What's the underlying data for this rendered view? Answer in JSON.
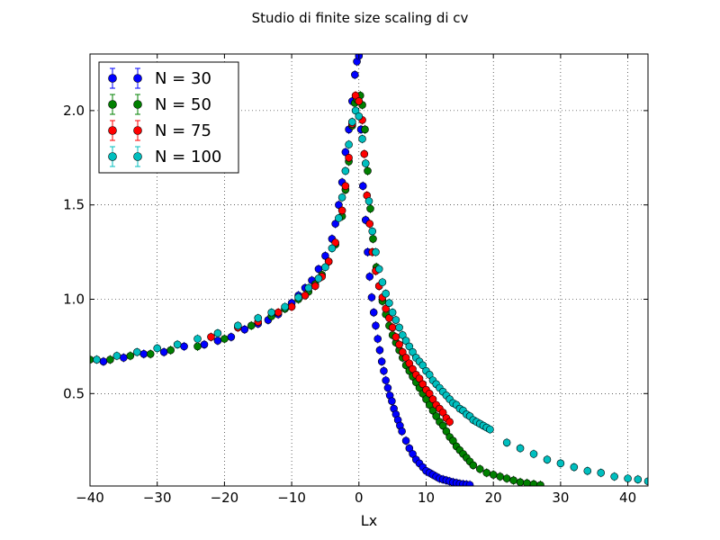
{
  "chart_data": {
    "type": "scatter",
    "title": "Studio di finite size scaling di cv",
    "xlabel": "Lx",
    "ylabel": "",
    "xlim": [
      -40,
      43
    ],
    "ylim": [
      0.01,
      2.3
    ],
    "xticks": [
      -40,
      -30,
      -20,
      -10,
      0,
      10,
      20,
      30,
      40
    ],
    "xtick_labels": [
      "−40",
      "−30",
      "−20",
      "−10",
      "0",
      "10",
      "20",
      "30",
      "40"
    ],
    "yticks": [
      0.5,
      1.0,
      1.5,
      2.0
    ],
    "ytick_labels": [
      "0.5",
      "1.0",
      "1.5",
      "2.0"
    ],
    "grid": true,
    "legend_position": "top-left",
    "error_bars": true,
    "series": [
      {
        "name": "N = 30",
        "color": "#0000ff",
        "x": [
          -38.0,
          -35.0,
          -32.0,
          -29.0,
          -26.0,
          -23.0,
          -21.0,
          -19.0,
          -17.0,
          -15.0,
          -13.5,
          -12.0,
          -11.0,
          -10.0,
          -9.0,
          -8.0,
          -7.0,
          -6.0,
          -5.0,
          -4.0,
          -3.5,
          -3.0,
          -2.5,
          -2.0,
          -1.5,
          -1.0,
          -0.6,
          -0.3,
          0.0,
          0.3,
          0.6,
          1.0,
          1.3,
          1.6,
          1.9,
          2.2,
          2.5,
          2.8,
          3.1,
          3.4,
          3.7,
          4.0,
          4.3,
          4.6,
          4.9,
          5.2,
          5.5,
          5.8,
          6.1,
          6.4,
          7.0,
          7.5,
          8.0,
          8.5,
          9.0,
          9.5,
          10.0,
          10.5,
          11.0,
          11.5,
          12.0,
          12.5,
          13.0,
          13.5,
          14.0,
          14.5,
          15.0,
          15.5,
          16.0,
          16.5
        ],
        "y": [
          0.67,
          0.69,
          0.71,
          0.72,
          0.75,
          0.76,
          0.78,
          0.8,
          0.84,
          0.87,
          0.89,
          0.92,
          0.95,
          0.98,
          1.02,
          1.06,
          1.1,
          1.16,
          1.23,
          1.32,
          1.4,
          1.5,
          1.62,
          1.78,
          1.9,
          2.05,
          2.19,
          2.26,
          2.29,
          1.9,
          1.6,
          1.42,
          1.25,
          1.12,
          1.01,
          0.93,
          0.86,
          0.79,
          0.73,
          0.67,
          0.62,
          0.57,
          0.53,
          0.49,
          0.46,
          0.42,
          0.39,
          0.36,
          0.33,
          0.3,
          0.25,
          0.21,
          0.18,
          0.15,
          0.13,
          0.11,
          0.09,
          0.08,
          0.07,
          0.06,
          0.05,
          0.045,
          0.04,
          0.035,
          0.03,
          0.026,
          0.022,
          0.02,
          0.018,
          0.016
        ]
      },
      {
        "name": "N = 50",
        "color": "#008000",
        "x": [
          -40.0,
          -37.0,
          -34.0,
          -31.0,
          -28.0,
          -24.0,
          -20.0,
          -16.0,
          -13.0,
          -11.0,
          -9.0,
          -7.5,
          -6.5,
          -5.5,
          -4.5,
          -3.5,
          -2.5,
          -2.0,
          -1.5,
          -1.0,
          -0.6,
          -0.3,
          0.2,
          0.5,
          0.9,
          1.3,
          1.7,
          2.1,
          2.6,
          3.0,
          3.5,
          4.0,
          4.5,
          5.0,
          5.5,
          6.0,
          6.5,
          7.0,
          7.5,
          8.0,
          8.5,
          9.0,
          9.5,
          10.0,
          10.5,
          11.0,
          11.5,
          12.0,
          12.5,
          13.0,
          13.5,
          14.0,
          14.5,
          15.0,
          15.5,
          16.0,
          16.5,
          17.0,
          18.0,
          19.0,
          20.0,
          21.0,
          22.0,
          23.0,
          24.0,
          25.0,
          26.0,
          27.0
        ],
        "y": [
          0.68,
          0.68,
          0.7,
          0.71,
          0.73,
          0.75,
          0.79,
          0.86,
          0.91,
          0.95,
          1.0,
          1.04,
          1.08,
          1.13,
          1.2,
          1.29,
          1.44,
          1.58,
          1.73,
          1.92,
          2.04,
          2.06,
          2.08,
          2.03,
          1.9,
          1.68,
          1.48,
          1.32,
          1.17,
          1.07,
          0.99,
          0.92,
          0.86,
          0.81,
          0.77,
          0.73,
          0.69,
          0.65,
          0.62,
          0.59,
          0.56,
          0.53,
          0.5,
          0.47,
          0.44,
          0.41,
          0.38,
          0.35,
          0.33,
          0.3,
          0.27,
          0.25,
          0.22,
          0.2,
          0.18,
          0.16,
          0.14,
          0.12,
          0.1,
          0.08,
          0.07,
          0.06,
          0.05,
          0.04,
          0.03,
          0.025,
          0.02,
          0.015
        ]
      },
      {
        "name": "N = 75",
        "color": "#ff0000",
        "x": [
          -22.0,
          -18.0,
          -15.0,
          -12.0,
          -10.0,
          -8.0,
          -6.5,
          -5.5,
          -4.5,
          -3.5,
          -2.5,
          -2.0,
          -1.5,
          -1.0,
          -0.5,
          0.0,
          0.5,
          0.8,
          1.2,
          1.6,
          2.0,
          2.5,
          3.0,
          3.5,
          4.0,
          4.5,
          5.0,
          5.5,
          6.0,
          6.5,
          7.0,
          7.5,
          8.0,
          8.5,
          9.0,
          9.5,
          10.0,
          10.5,
          11.0,
          11.5,
          12.0,
          12.5,
          13.0,
          13.5
        ],
        "y": [
          0.8,
          0.85,
          0.88,
          0.93,
          0.96,
          1.02,
          1.07,
          1.12,
          1.2,
          1.3,
          1.47,
          1.6,
          1.75,
          1.93,
          2.08,
          2.05,
          1.95,
          1.77,
          1.55,
          1.4,
          1.25,
          1.15,
          1.07,
          1.01,
          0.95,
          0.9,
          0.85,
          0.8,
          0.76,
          0.72,
          0.69,
          0.66,
          0.63,
          0.6,
          0.58,
          0.55,
          0.52,
          0.5,
          0.47,
          0.44,
          0.42,
          0.4,
          0.37,
          0.35
        ]
      },
      {
        "name": "N = 100",
        "color": "#00bfbf",
        "x": [
          -39.0,
          -36.0,
          -33.0,
          -30.0,
          -27.0,
          -24.0,
          -21.0,
          -18.0,
          -15.0,
          -13.0,
          -11.0,
          -9.0,
          -7.5,
          -6.0,
          -5.0,
          -4.0,
          -3.0,
          -2.5,
          -2.0,
          -1.5,
          -1.0,
          -0.5,
          0.0,
          0.5,
          1.0,
          1.5,
          2.0,
          2.5,
          3.0,
          3.5,
          4.0,
          4.5,
          5.0,
          5.5,
          6.0,
          6.5,
          7.0,
          7.5,
          8.0,
          8.5,
          9.0,
          9.5,
          10.0,
          10.5,
          11.0,
          11.5,
          12.0,
          12.5,
          13.0,
          13.5,
          14.0,
          14.5,
          15.0,
          15.5,
          16.0,
          16.5,
          17.0,
          17.5,
          18.0,
          18.5,
          19.0,
          19.5,
          22.0,
          24.0,
          26.0,
          28.0,
          30.0,
          32.0,
          34.0,
          36.0,
          38.0,
          40.0,
          41.5,
          43.0
        ],
        "y": [
          0.68,
          0.7,
          0.72,
          0.74,
          0.76,
          0.79,
          0.82,
          0.86,
          0.9,
          0.93,
          0.96,
          1.01,
          1.06,
          1.11,
          1.17,
          1.27,
          1.43,
          1.54,
          1.68,
          1.82,
          1.94,
          2.0,
          1.97,
          1.85,
          1.72,
          1.52,
          1.36,
          1.25,
          1.16,
          1.09,
          1.03,
          0.98,
          0.93,
          0.89,
          0.85,
          0.81,
          0.78,
          0.75,
          0.72,
          0.69,
          0.67,
          0.65,
          0.62,
          0.6,
          0.57,
          0.55,
          0.53,
          0.51,
          0.49,
          0.47,
          0.45,
          0.44,
          0.42,
          0.41,
          0.39,
          0.38,
          0.36,
          0.35,
          0.34,
          0.33,
          0.32,
          0.31,
          0.24,
          0.21,
          0.18,
          0.15,
          0.13,
          0.11,
          0.09,
          0.08,
          0.06,
          0.05,
          0.045,
          0.035
        ]
      }
    ]
  }
}
